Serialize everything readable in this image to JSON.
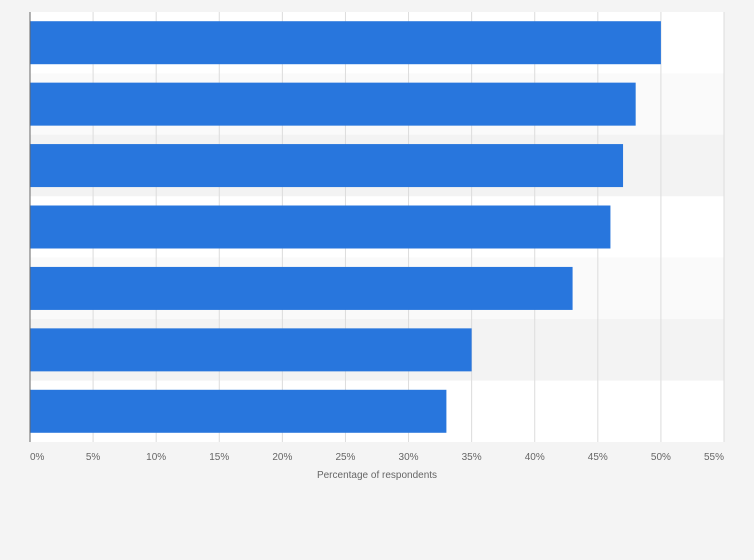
{
  "chart_data": {
    "type": "bar",
    "orientation": "horizontal",
    "categories": [
      "",
      "",
      "",
      "",
      "",
      "",
      ""
    ],
    "values": [
      50,
      48,
      47,
      46,
      43,
      35,
      33
    ],
    "title": "",
    "xlabel": "Percentage of respondents",
    "ylabel": "",
    "xlim": [
      0,
      55
    ],
    "x_ticks": [
      0,
      5,
      10,
      15,
      20,
      25,
      30,
      35,
      40,
      45,
      50,
      55
    ],
    "x_tick_labels": [
      "0%",
      "5%",
      "10%",
      "15%",
      "20%",
      "25%",
      "30%",
      "35%",
      "40%",
      "45%",
      "50%",
      "55%"
    ],
    "grid": true,
    "legend": "none",
    "bar_color": "#2876dd",
    "band_colors": [
      "#ffffff",
      "#fafafa",
      "#f3f3f3"
    ]
  }
}
